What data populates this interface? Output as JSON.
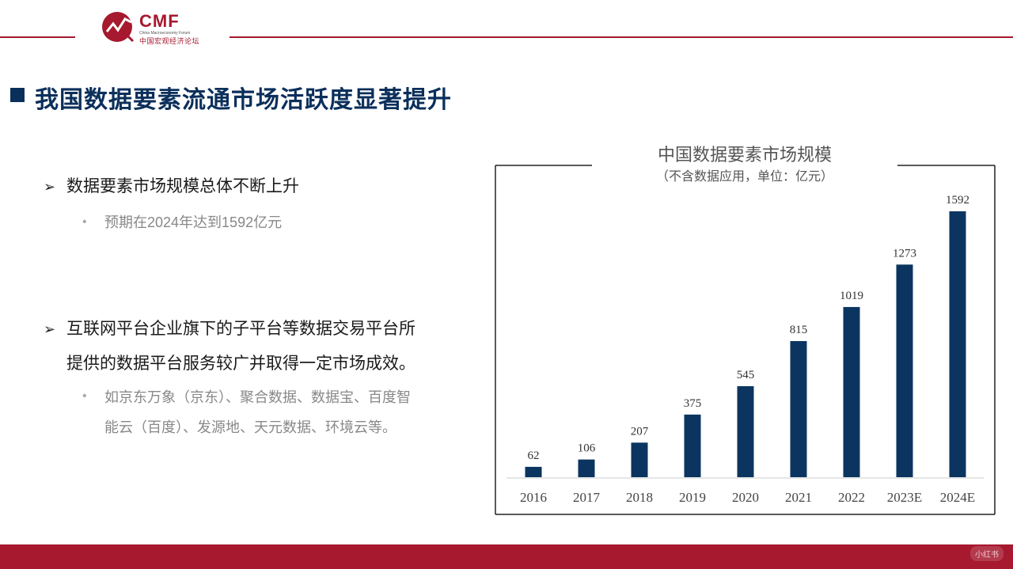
{
  "header": {
    "logo_text": "CMF",
    "logo_subtitle_en": "China Macroeconomy Forum",
    "logo_subtitle_cn": "中国宏观经济论坛"
  },
  "page_title": "我国数据要素流通市场活跃度显著提升",
  "bullets": [
    {
      "lines": [
        "数据要素市场规模总体不断上升"
      ],
      "sub": [
        "预期在2024年达到1592亿元"
      ]
    },
    {
      "lines": [
        "互联网平台企业旗下的子平台等数据交易平台所",
        "提供的数据平台服务较广并取得一定市场成效。"
      ],
      "sub": [
        "如京东万象（京东）、聚合数据、数据宝、百度智",
        "能云（百度）、发源地、天元数据、环境云等。"
      ]
    }
  ],
  "watermark": "小红书",
  "colors": {
    "brand_red": "#a6192e",
    "navy": "#0b2f5b",
    "bar": "#0b3560"
  },
  "chart_data": {
    "type": "bar",
    "title": "中国数据要素市场规模",
    "subtitle": "（不含数据应用，单位：亿元）",
    "categories": [
      "2016",
      "2017",
      "2018",
      "2019",
      "2020",
      "2021",
      "2022",
      "2023E",
      "2024E"
    ],
    "values": [
      62,
      106,
      207,
      375,
      545,
      815,
      1019,
      1273,
      1592
    ],
    "ylim": [
      0,
      1592
    ],
    "grid": false,
    "legend": "none"
  }
}
